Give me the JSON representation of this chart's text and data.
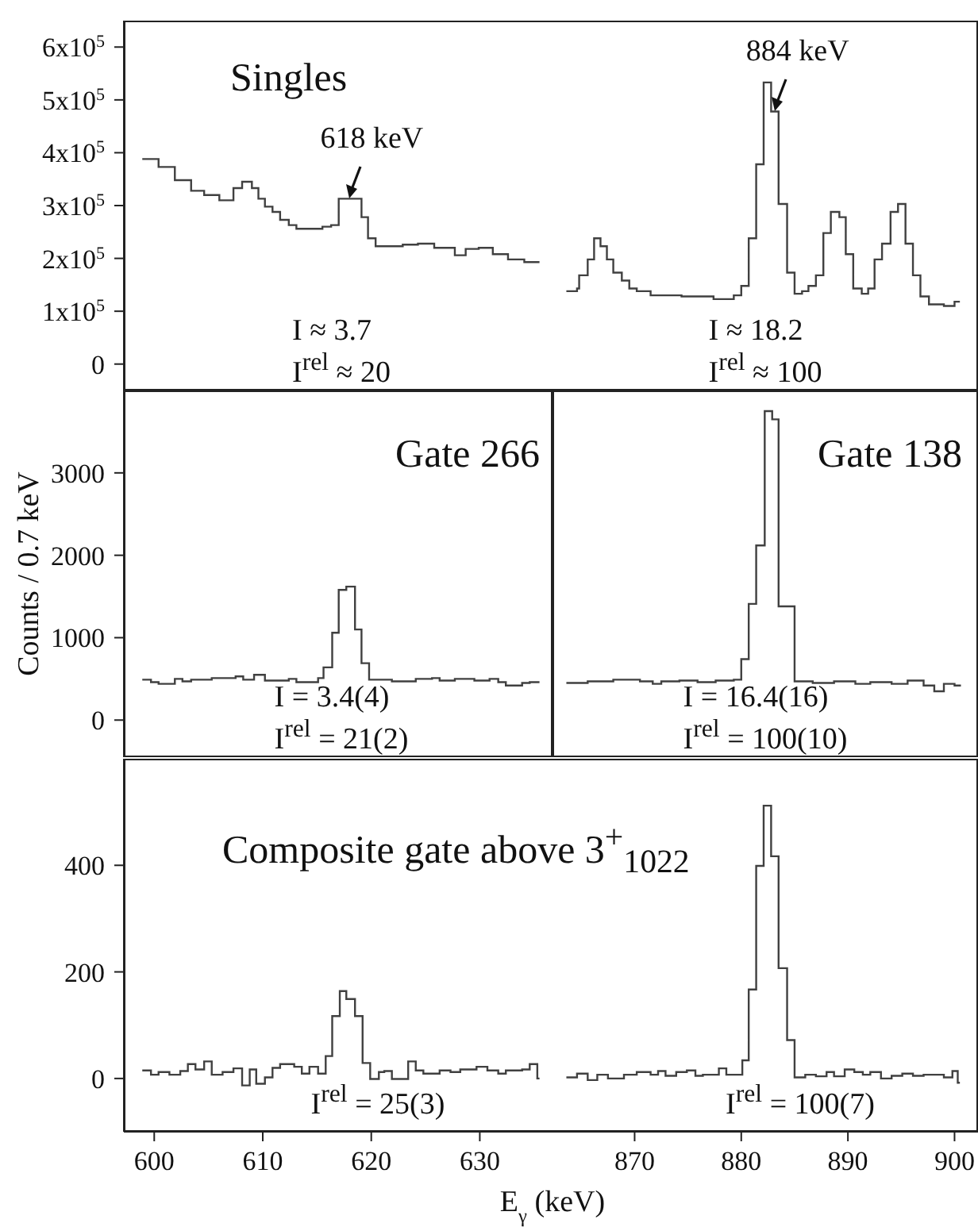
{
  "chart_data": [
    {
      "type": "step",
      "title": "Singles",
      "annotations": [
        "I ≈ 3.7",
        "I$^{rel}$ ≈ 20",
        {
          "text": "618 keV",
          "x": 618.0,
          "y": 313000
        }
      ],
      "xlim": [
        597.2,
        636.7
      ],
      "xticks": [
        600,
        610,
        620,
        630
      ],
      "ylim": [
        -50000,
        650000
      ],
      "yticks": [
        0,
        {
          "value": 100000,
          "label": "1x10$^{5}$"
        },
        {
          "value": 200000,
          "label": "2x10$^{5}$"
        },
        {
          "value": 300000,
          "label": "3x10$^{5}$"
        },
        {
          "value": 400000,
          "label": "4x10$^{5}$"
        },
        {
          "value": 500000,
          "label": "5x10$^{5}$"
        },
        {
          "value": 600000,
          "label": "6x10$^{5}$"
        }
      ],
      "tick_labels": "y",
      "series": [
        {
          "color": "#404040",
          "x": [
            598.9,
            600.4,
            601.9,
            603.4,
            604.6,
            606.0,
            607.3,
            608.1,
            609.0,
            609.6,
            610.2,
            610.9,
            611.6,
            612.4,
            613.1,
            615.5,
            616.3,
            617.0,
            619.1,
            619.7,
            620.4,
            622.9,
            624.3,
            625.8,
            627.7,
            628.7,
            629.9,
            631.2,
            632.6,
            634.1,
            635.5
          ],
          "values": [
            388000,
            373000,
            348000,
            328000,
            320000,
            310000,
            333000,
            345000,
            333000,
            313000,
            298000,
            288000,
            273000,
            263000,
            256000,
            260000,
            263000,
            313000,
            278000,
            238000,
            223000,
            226000,
            228000,
            220000,
            206000,
            218000,
            220000,
            208000,
            198000,
            193000,
            193000
          ]
        }
      ]
    },
    {
      "type": "step",
      "annotations": [
        "I ≈ 18.2",
        "I$^{rel}$ ≈ 100",
        {
          "text": "884 keV",
          "x": 883.2,
          "y": 478000
        }
      ],
      "xlim": [
        862.3,
        902.2
      ],
      "xticks": [
        870,
        880,
        890,
        900
      ],
      "ylim": [
        -50000,
        650000
      ],
      "tick_labels": false,
      "series": [
        {
          "color": "#404040",
          "x": [
            863.6,
            864.6,
            864.8,
            865.6,
            866.2,
            866.8,
            867.4,
            868.0,
            868.8,
            869.5,
            870.2,
            871.5,
            874.4,
            877.4,
            879.3,
            880.0,
            880.7,
            881.4,
            882.1,
            882.8,
            883.5,
            884.3,
            885.0,
            885.7,
            886.3,
            887.0,
            887.7,
            888.4,
            889.2,
            889.8,
            890.5,
            891.3,
            891.9,
            892.5,
            893.2,
            894.0,
            894.7,
            895.4,
            896.1,
            896.8,
            897.6,
            899.0,
            900.0,
            900.5
          ],
          "values": [
            138000,
            143000,
            168000,
            198000,
            238000,
            223000,
            198000,
            173000,
            158000,
            143000,
            138000,
            130000,
            128000,
            123000,
            130000,
            148000,
            238000,
            378000,
            533000,
            478000,
            303000,
            173000,
            133000,
            138000,
            148000,
            168000,
            248000,
            288000,
            278000,
            208000,
            143000,
            133000,
            143000,
            198000,
            228000,
            288000,
            303000,
            228000,
            168000,
            128000,
            113000,
            110000,
            118000,
            118000
          ]
        }
      ]
    },
    {
      "type": "step",
      "title": "Gate 266",
      "ylabel": "Counts / 0.7 keV",
      "annotations": [
        "I = 3.4(4)",
        "I$^{rel}$ = 21(2)"
      ],
      "xlim": [
        597.2,
        636.7
      ],
      "xticks": [
        600,
        610,
        620,
        630
      ],
      "ylim": [
        -450,
        4000
      ],
      "yticks": [
        0,
        1000,
        2000,
        3000
      ],
      "tick_labels": "y",
      "series": [
        {
          "color": "#404040",
          "x": [
            598.9,
            599.7,
            600.4,
            601.9,
            602.6,
            603.4,
            605.3,
            607.5,
            608.2,
            609.2,
            610.2,
            612.4,
            613.1,
            615.1,
            615.6,
            616.4,
            617.0,
            617.7,
            618.5,
            619.1,
            619.8,
            621.9,
            624.1,
            625.6,
            626.3,
            627.7,
            629.5,
            630.9,
            631.7,
            632.4,
            633.9,
            634.6,
            635.5
          ],
          "values": [
            490,
            460,
            440,
            500,
            470,
            490,
            510,
            530,
            490,
            550,
            480,
            500,
            460,
            510,
            640,
            1060,
            1580,
            1620,
            1100,
            690,
            490,
            470,
            500,
            510,
            480,
            500,
            480,
            500,
            460,
            420,
            450,
            460,
            460
          ]
        }
      ]
    },
    {
      "type": "step",
      "title": "Gate 138",
      "annotations": [
        "I = 16.4(16)",
        "I$^{rel}$ = 100(10)"
      ],
      "xlim": [
        862.3,
        902.2
      ],
      "xticks": [
        870,
        880,
        890,
        900
      ],
      "ylim": [
        -450,
        4000
      ],
      "tick_labels": false,
      "series": [
        {
          "color": "#404040",
          "x": [
            863.6,
            865.6,
            868.0,
            870.5,
            871.7,
            872.5,
            874.2,
            875.9,
            877.6,
            879.3,
            880.0,
            880.7,
            881.4,
            882.2,
            882.9,
            883.5,
            885.0,
            886.7,
            888.7,
            890.7,
            892.1,
            894.1,
            895.6,
            897.1,
            898.1,
            899.0,
            900.0,
            900.6
          ],
          "values": [
            450,
            470,
            490,
            470,
            440,
            470,
            480,
            460,
            480,
            490,
            740,
            1410,
            2120,
            3750,
            3650,
            1380,
            470,
            450,
            470,
            440,
            460,
            440,
            480,
            420,
            350,
            440,
            420,
            420
          ]
        }
      ]
    },
    {
      "type": "step",
      "title": "Composite gate above 3$^{+}$$_{1022}$",
      "xlabel": "E$_{γ}$ (keV)",
      "annotations": [
        "I$^{rel}$ = 25(3)"
      ],
      "xlim": [
        597.2,
        636.7
      ],
      "xticks": [
        600,
        610,
        620,
        630
      ],
      "ylim": [
        -100,
        600
      ],
      "yticks": [
        0,
        200,
        400
      ],
      "series": [
        {
          "color": "#404040",
          "x": [
            598.9,
            599.7,
            600.4,
            601.4,
            602.4,
            603.1,
            603.8,
            604.6,
            605.3,
            606.3,
            607.3,
            608.1,
            608.8,
            609.4,
            610.2,
            610.9,
            611.6,
            612.9,
            613.6,
            614.3,
            615.1,
            615.8,
            616.4,
            617.1,
            617.7,
            618.5,
            619.2,
            619.9,
            620.7,
            621.2,
            621.9,
            623.4,
            624.1,
            624.8,
            626.3,
            627.3,
            628.2,
            629.7,
            630.7,
            631.7,
            632.4,
            633.9,
            634.6,
            635.3,
            635.5
          ],
          "values": [
            15,
            7,
            12,
            7,
            14,
            27,
            17,
            32,
            7,
            12,
            19,
            -13,
            17,
            -10,
            2,
            20,
            27,
            22,
            9,
            22,
            9,
            42,
            117,
            164,
            149,
            117,
            29,
            -1,
            12,
            14,
            -1,
            32,
            15,
            9,
            15,
            12,
            17,
            22,
            15,
            9,
            15,
            17,
            27,
            0,
            0
          ]
        }
      ]
    },
    {
      "type": "step",
      "annotations": [
        "I$^{rel}$ = 100(7)"
      ],
      "xlim": [
        862.3,
        902.2
      ],
      "xticks": [
        870,
        880,
        890,
        900
      ],
      "ylim": [
        -100,
        600
      ],
      "tick_labels": "x",
      "series": [
        {
          "color": "#404040",
          "x": [
            863.6,
            864.6,
            865.6,
            866.5,
            867.5,
            869.0,
            870.2,
            871.5,
            872.2,
            872.9,
            873.9,
            874.9,
            875.7,
            876.4,
            877.9,
            878.6,
            880.1,
            880.7,
            881.4,
            882.1,
            882.8,
            883.5,
            884.3,
            885.0,
            886.0,
            887.0,
            888.0,
            888.7,
            889.7,
            890.6,
            891.4,
            892.1,
            893.1,
            894.1,
            895.1,
            896.1,
            897.1,
            899.0,
            899.8,
            900.3,
            900.5
          ],
          "values": [
            2,
            9,
            -3,
            7,
            0,
            7,
            12,
            7,
            14,
            5,
            12,
            15,
            5,
            7,
            19,
            7,
            34,
            167,
            399,
            512,
            417,
            207,
            72,
            2,
            7,
            4,
            12,
            4,
            17,
            12,
            7,
            12,
            0,
            5,
            9,
            5,
            7,
            2,
            14,
            -8,
            -8
          ]
        }
      ]
    }
  ]
}
